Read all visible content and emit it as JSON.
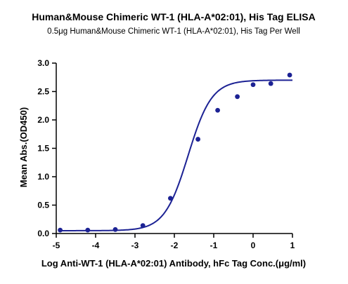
{
  "chart_data": {
    "type": "scatter",
    "title": "Human&Mouse Chimeric WT-1 (HLA-A*02:01), His Tag ELISA",
    "subtitle": "0.5μg Human&Mouse Chimeric WT-1 (HLA-A*02:01), His Tag Per Well",
    "xlabel": "Log Anti-WT-1 (HLA-A*02:01) Antibody, hFc Tag Conc.(μg/ml)",
    "ylabel": "Mean Abs.(OD450)",
    "xlim": [
      -5,
      1
    ],
    "ylim": [
      0,
      3.0
    ],
    "x_ticks": [
      "-5",
      "-4",
      "-3",
      "-2",
      "-1",
      "0",
      "1"
    ],
    "y_ticks": [
      "0.0",
      "0.5",
      "1.0",
      "1.5",
      "2.0",
      "2.5",
      "3.0"
    ],
    "grid": false,
    "colors": {
      "series": "#1c2294",
      "axis": "#000000"
    },
    "series": [
      {
        "points": [
          {
            "x": -4.9,
            "y": 0.06
          },
          {
            "x": -4.2,
            "y": 0.06
          },
          {
            "x": -3.5,
            "y": 0.07
          },
          {
            "x": -2.8,
            "y": 0.14
          },
          {
            "x": -2.1,
            "y": 0.62
          },
          {
            "x": -1.4,
            "y": 1.66
          },
          {
            "x": -0.9,
            "y": 2.17
          },
          {
            "x": -0.4,
            "y": 2.41
          },
          {
            "x": 0.0,
            "y": 2.62
          },
          {
            "x": 0.45,
            "y": 2.64
          },
          {
            "x": 0.93,
            "y": 2.79
          }
        ],
        "fit": {
          "model": "4PL",
          "bottom": 0.05,
          "top": 2.7,
          "log_ec50": -1.65,
          "hill": 1.45
        }
      }
    ]
  }
}
